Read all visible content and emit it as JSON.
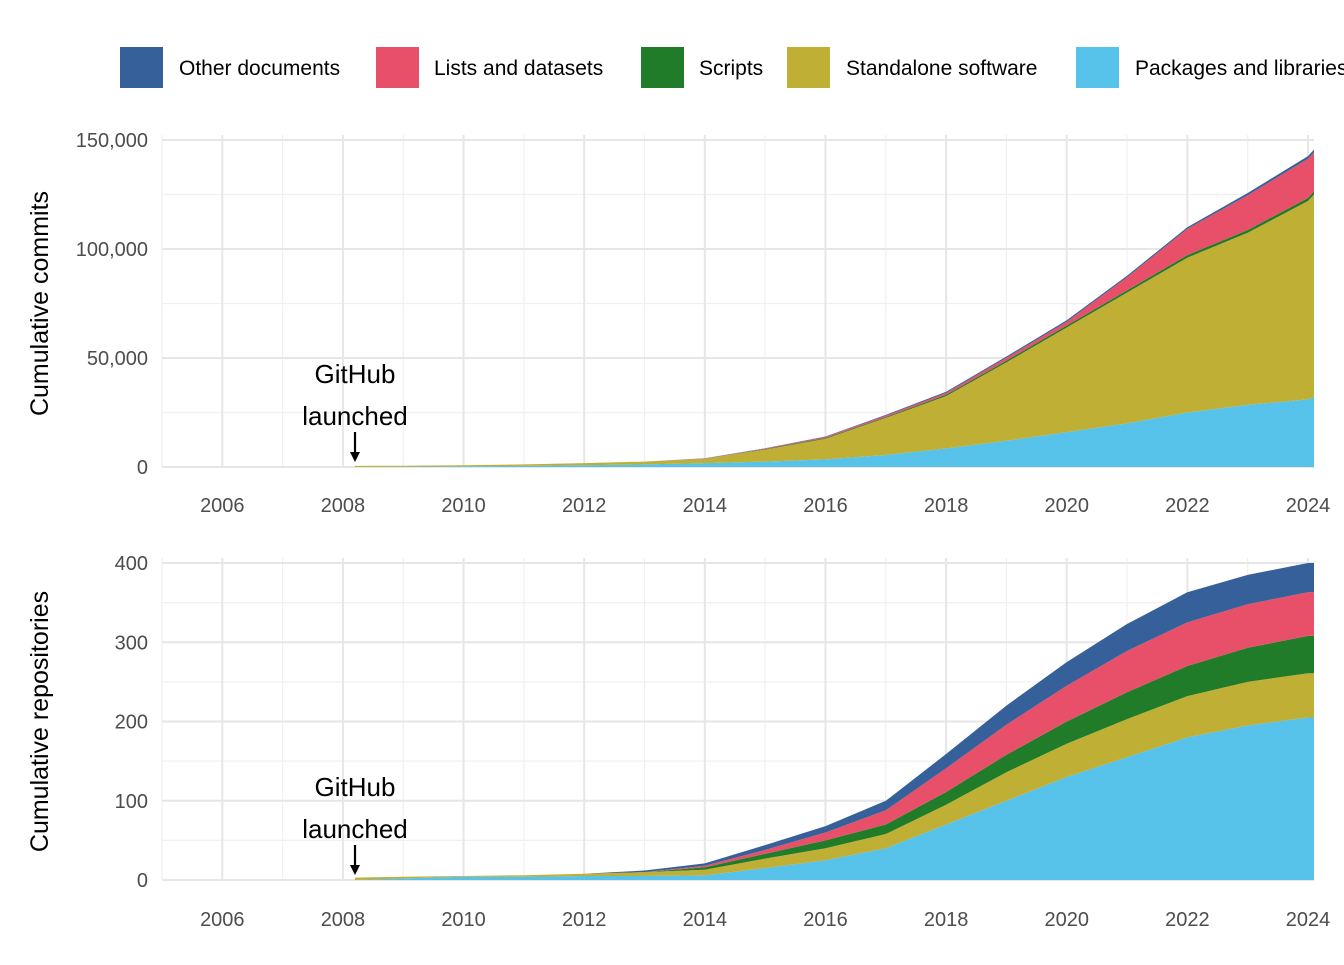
{
  "chart_data": {
    "type": "area",
    "stacked": true,
    "legend": {
      "position": "top",
      "entries": [
        {
          "name": "Other documents",
          "color": "#35609A"
        },
        {
          "name": "Lists and datasets",
          "color": "#E8506A"
        },
        {
          "name": "Scripts",
          "color": "#217C29"
        },
        {
          "name": "Standalone software",
          "color": "#C0AF35"
        },
        {
          "name": "Packages and libraries",
          "color": "#57C2EA"
        }
      ]
    },
    "grid": true,
    "panels": [
      {
        "ylabel": "Cumulative commits",
        "xlim": [
          2005,
          2024.1
        ],
        "ylim": [
          0,
          150000
        ],
        "x_ticks": [
          2006,
          2008,
          2010,
          2012,
          2014,
          2016,
          2018,
          2020,
          2022,
          2024
        ],
        "x_tick_labels": [
          "2006",
          "2008",
          "2010",
          "2012",
          "2014",
          "2016",
          "2018",
          "2020",
          "2022",
          "2024"
        ],
        "y_ticks": [
          0,
          50000,
          100000,
          150000
        ],
        "y_tick_labels": [
          "0",
          "50,000",
          "100,000",
          "150,000"
        ],
        "annotation": {
          "lines": [
            "GitHub",
            "launched"
          ],
          "x": 2008.2,
          "y": 0
        },
        "x": [
          2008.2,
          2009,
          2010,
          2011,
          2012,
          2013,
          2014,
          2015,
          2016,
          2017,
          2018,
          2019,
          2020,
          2021,
          2022,
          2023,
          2024,
          2024.1
        ],
        "series": [
          {
            "name": "Packages and libraries",
            "values": [
              0,
              200,
              300,
              500,
              800,
              1200,
              1800,
              2500,
              3500,
              5500,
              8500,
              12000,
              16000,
              20000,
              25000,
              28500,
              31000,
              32000
            ]
          },
          {
            "name": "Standalone software",
            "values": [
              500,
              400,
              500,
              700,
              1000,
              1300,
              2000,
              5500,
              9500,
              17000,
              24000,
              36000,
              48000,
              60000,
              71000,
              79000,
              91000,
              93000
            ]
          },
          {
            "name": "Scripts",
            "values": [
              0,
              0,
              0,
              0,
              0,
              0,
              0,
              200,
              300,
              400,
              600,
              800,
              900,
              1000,
              1200,
              1200,
              1400,
              1400
            ]
          },
          {
            "name": "Lists and datasets",
            "values": [
              0,
              0,
              0,
              0,
              0,
              0,
              100,
              300,
              500,
              700,
              900,
              1300,
              1700,
              6000,
              12000,
              16000,
              18000,
              18000
            ]
          },
          {
            "name": "Other documents",
            "values": [
              0,
              0,
              0,
              0,
              0,
              0,
              100,
              100,
              200,
              300,
              500,
              600,
              700,
              700,
              800,
              1000,
              1200,
              1200
            ]
          }
        ]
      },
      {
        "ylabel": "Cumulative repositories",
        "xlim": [
          2005,
          2024.1
        ],
        "ylim": [
          0,
          400
        ],
        "x_ticks": [
          2006,
          2008,
          2010,
          2012,
          2014,
          2016,
          2018,
          2020,
          2022,
          2024
        ],
        "x_tick_labels": [
          "2006",
          "2008",
          "2010",
          "2012",
          "2014",
          "2016",
          "2018",
          "2020",
          "2022",
          "2024"
        ],
        "y_ticks": [
          0,
          100,
          200,
          300,
          400
        ],
        "y_tick_labels": [
          "0",
          "100",
          "200",
          "300",
          "400"
        ],
        "annotation": {
          "lines": [
            "GitHub",
            "launched"
          ],
          "x": 2008.2,
          "y": 0
        },
        "x": [
          2008.2,
          2009,
          2010,
          2011,
          2012,
          2013,
          2014,
          2015,
          2016,
          2017,
          2018,
          2019,
          2020,
          2021,
          2022,
          2023,
          2024,
          2024.1
        ],
        "series": [
          {
            "name": "Packages and libraries",
            "values": [
              0,
              2,
              4,
              4,
              5,
              5,
              6,
              15,
              25,
              40,
              70,
              100,
              130,
              155,
              180,
              195,
              205,
              205
            ]
          },
          {
            "name": "Standalone software",
            "values": [
              3,
              2,
              1,
              2,
              3,
              5,
              7,
              12,
              15,
              18,
              25,
              36,
              42,
              48,
              52,
              55,
              56,
              56
            ]
          },
          {
            "name": "Scripts",
            "values": [
              0,
              0,
              0,
              0,
              0,
              0,
              3,
              6,
              10,
              12,
              16,
              22,
              28,
              34,
              38,
              43,
              47,
              47
            ]
          },
          {
            "name": "Lists and datasets",
            "values": [
              0,
              0,
              0,
              0,
              0,
              0,
              2,
              5,
              10,
              18,
              30,
              38,
              45,
              52,
              55,
              55,
              55,
              55
            ]
          },
          {
            "name": "Other documents",
            "values": [
              0,
              0,
              0,
              0,
              0,
              2,
              3,
              6,
              8,
              12,
              18,
              24,
              30,
              34,
              38,
              37,
              37,
              37
            ]
          }
        ]
      }
    ]
  }
}
